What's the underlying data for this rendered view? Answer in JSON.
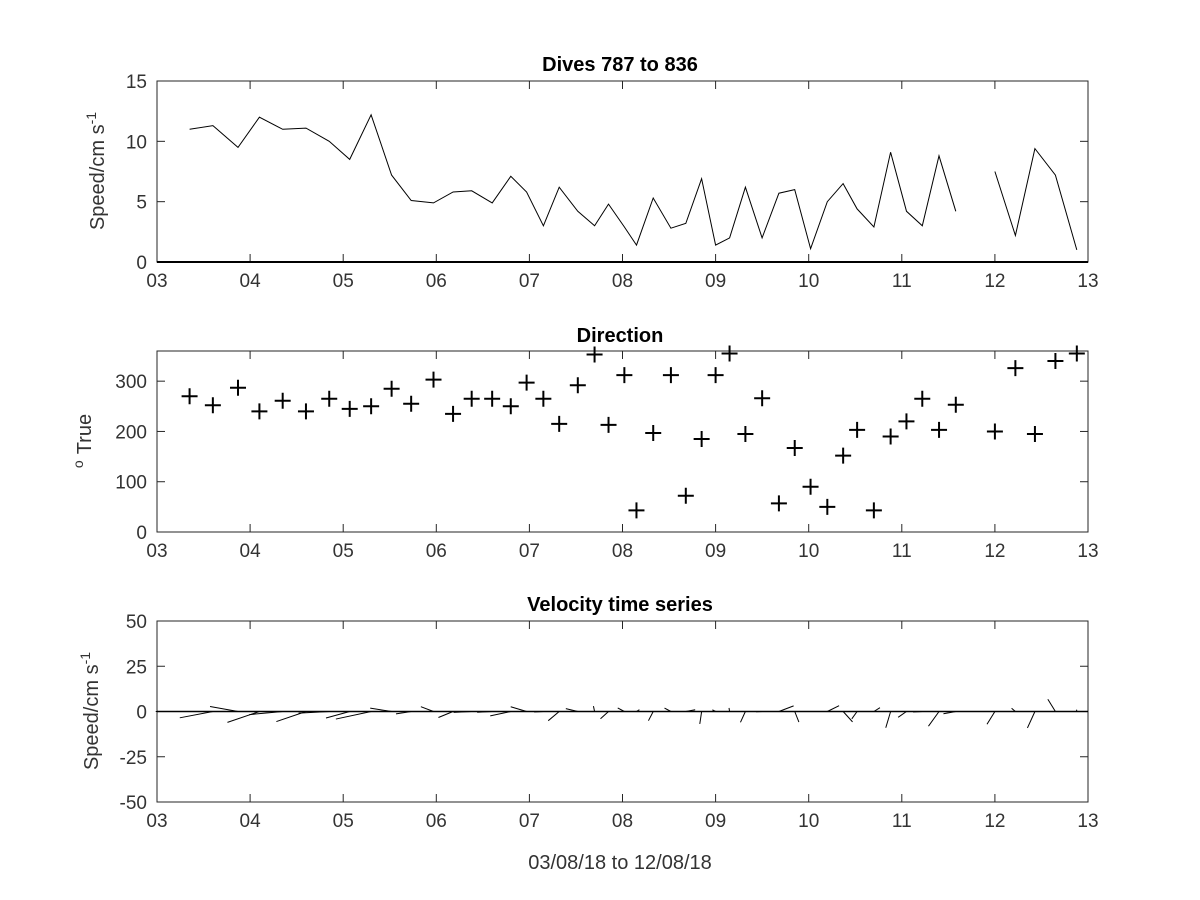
{
  "chart_data": [
    {
      "type": "line",
      "title": "Dives 787 to 836",
      "ylabel": "Speed/cm s",
      "ylabel_sup": "-1",
      "xlim": [
        3,
        13
      ],
      "ylim": [
        0,
        15
      ],
      "xticks": [
        "03",
        "04",
        "05",
        "06",
        "07",
        "08",
        "09",
        "10",
        "11",
        "12",
        "13"
      ],
      "yticks": [
        "0",
        "5",
        "10",
        "15"
      ],
      "series": [
        {
          "segments": [
            [
              [
                3.35,
                11.0
              ],
              [
                3.6,
                11.3
              ],
              [
                3.87,
                9.5
              ],
              [
                4.1,
                12.0
              ],
              [
                4.35,
                11.0
              ],
              [
                4.6,
                11.1
              ],
              [
                4.85,
                10.0
              ],
              [
                5.07,
                8.5
              ],
              [
                5.3,
                12.2
              ],
              [
                5.52,
                7.2
              ],
              [
                5.73,
                5.1
              ],
              [
                5.97,
                4.9
              ],
              [
                6.18,
                5.8
              ],
              [
                6.38,
                5.9
              ],
              [
                6.6,
                4.9
              ],
              [
                6.8,
                7.1
              ],
              [
                6.97,
                5.8
              ],
              [
                7.15,
                3.0
              ],
              [
                7.32,
                6.2
              ],
              [
                7.52,
                4.2
              ],
              [
                7.7,
                3.0
              ],
              [
                7.85,
                4.8
              ],
              [
                8.02,
                2.9
              ],
              [
                8.15,
                1.4
              ],
              [
                8.33,
                5.3
              ],
              [
                8.52,
                2.8
              ],
              [
                8.68,
                3.2
              ],
              [
                8.85,
                6.9
              ],
              [
                9.0,
                1.4
              ],
              [
                9.15,
                2.0
              ],
              [
                9.32,
                6.2
              ],
              [
                9.5,
                2.0
              ],
              [
                9.68,
                5.7
              ],
              [
                9.85,
                6.0
              ],
              [
                10.02,
                1.1
              ],
              [
                10.2,
                5.0
              ],
              [
                10.37,
                6.5
              ],
              [
                10.52,
                4.4
              ],
              [
                10.7,
                2.9
              ],
              [
                10.88,
                9.1
              ],
              [
                11.05,
                4.2
              ],
              [
                11.22,
                3.0
              ],
              [
                11.4,
                8.8
              ],
              [
                11.58,
                4.2
              ]
            ],
            [
              [
                12.0,
                7.5
              ],
              [
                12.22,
                2.2
              ],
              [
                12.43,
                9.4
              ],
              [
                12.65,
                7.2
              ],
              [
                12.88,
                1.0
              ]
            ]
          ]
        }
      ]
    },
    {
      "type": "scatter",
      "title": "Direction",
      "ylabel": "True",
      "ylabel_sup": "o",
      "xlim": [
        3,
        13
      ],
      "ylim": [
        0,
        360
      ],
      "xticks": [
        "03",
        "04",
        "05",
        "06",
        "07",
        "08",
        "09",
        "10",
        "11",
        "12",
        "13"
      ],
      "yticks": [
        "0",
        "100",
        "200",
        "300"
      ],
      "series": [
        {
          "marker": "+",
          "points": [
            [
              3.35,
              270
            ],
            [
              3.6,
              252
            ],
            [
              3.87,
              287
            ],
            [
              4.1,
              240
            ],
            [
              4.35,
              261
            ],
            [
              4.6,
              240
            ],
            [
              4.85,
              265
            ],
            [
              5.07,
              245
            ],
            [
              5.3,
              250
            ],
            [
              5.52,
              285
            ],
            [
              5.73,
              255
            ],
            [
              5.97,
              303
            ],
            [
              6.18,
              235
            ],
            [
              6.38,
              265
            ],
            [
              6.6,
              265
            ],
            [
              6.8,
              250
            ],
            [
              6.97,
              297
            ],
            [
              7.15,
              265
            ],
            [
              7.32,
              215
            ],
            [
              7.52,
              292
            ],
            [
              7.7,
              353
            ],
            [
              7.85,
              213
            ],
            [
              8.02,
              312
            ],
            [
              8.15,
              43
            ],
            [
              8.33,
              197
            ],
            [
              8.52,
              312
            ],
            [
              8.68,
              72
            ],
            [
              8.85,
              185
            ],
            [
              9.0,
              312
            ],
            [
              9.15,
              355
            ],
            [
              9.32,
              195
            ],
            [
              9.5,
              266
            ],
            [
              9.68,
              57
            ],
            [
              9.85,
              167
            ],
            [
              10.02,
              90
            ],
            [
              10.2,
              50
            ],
            [
              10.37,
              152
            ],
            [
              10.52,
              203
            ],
            [
              10.7,
              43
            ],
            [
              10.88,
              190
            ],
            [
              11.05,
              220
            ],
            [
              11.22,
              265
            ],
            [
              11.4,
              203
            ],
            [
              11.58,
              253
            ],
            [
              12.0,
              200
            ],
            [
              12.22,
              326
            ],
            [
              12.43,
              195
            ],
            [
              12.65,
              340
            ],
            [
              12.88,
              355
            ]
          ]
        }
      ]
    },
    {
      "type": "quiver",
      "title": "Velocity time series",
      "xlabel": "03/08/18 to 12/08/18",
      "ylabel": "Speed/cm s",
      "ylabel_sup": "-1",
      "xlim": [
        3,
        13
      ],
      "ylim": [
        -50,
        50
      ],
      "xticks": [
        "03",
        "04",
        "05",
        "06",
        "07",
        "08",
        "09",
        "10",
        "11",
        "12",
        "13"
      ],
      "yticks": [
        "-50",
        "-25",
        "0",
        "25",
        "50"
      ]
    }
  ]
}
